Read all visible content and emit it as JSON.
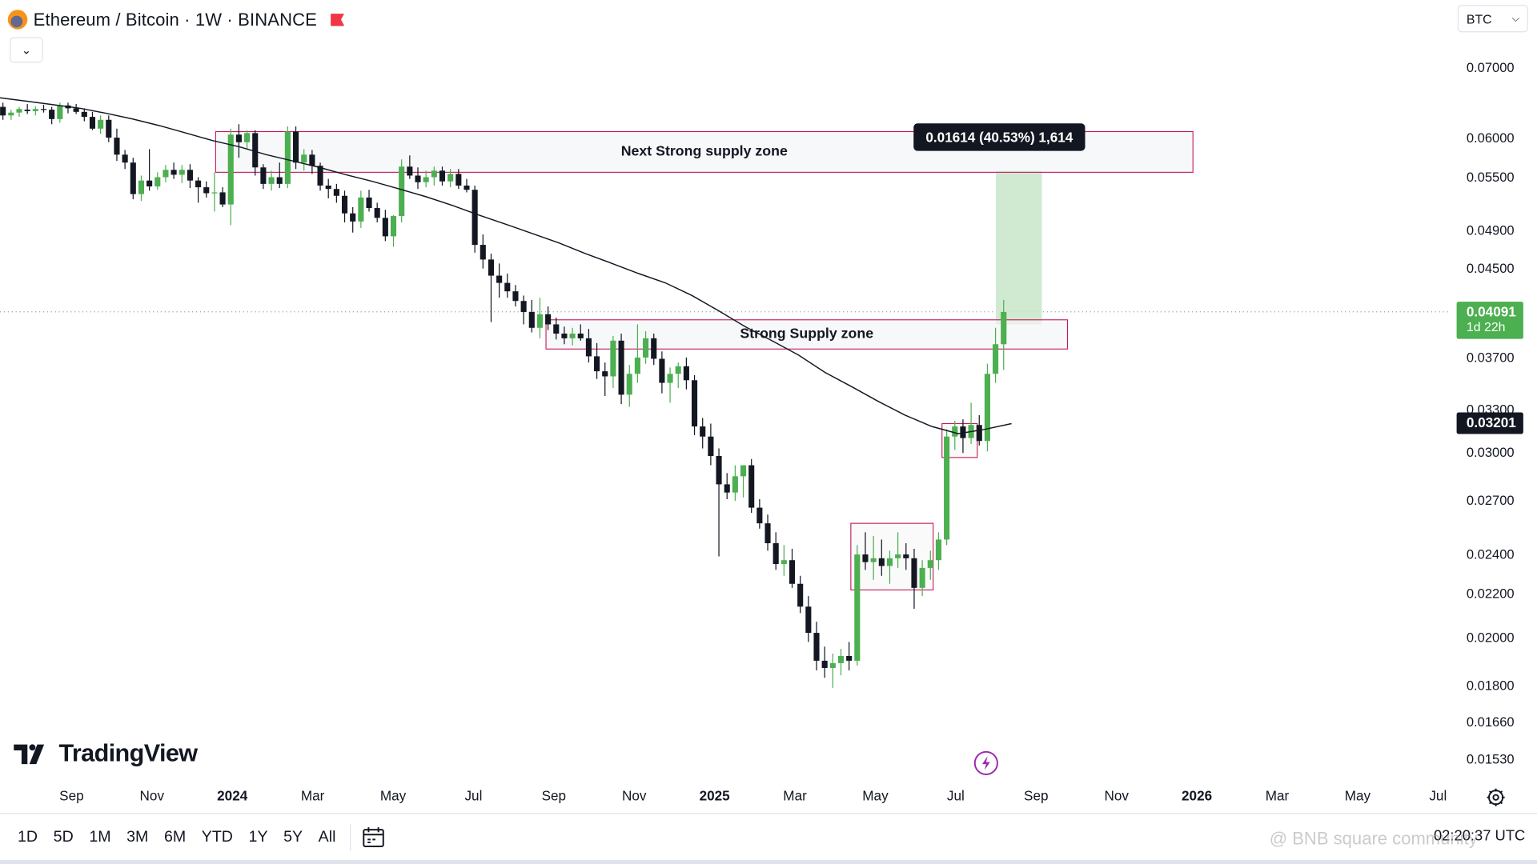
{
  "header": {
    "title": "Ethereum / Bitcoin · 1W · BINANCE",
    "currency": "BTC"
  },
  "annotations": {
    "next_zone_label": "Next Strong supply zone",
    "strong_zone_label": "Strong Supply zone",
    "measure_label": "0.01614 (40.53%) 1,614"
  },
  "price_labels": {
    "current_price": "0.04091",
    "countdown": "1d 22h",
    "ma_price": "0.03201",
    "colors": {
      "current": "#4caf50",
      "ma": "#131722"
    }
  },
  "price_axis_ticks": [
    "0.07000",
    "0.06000",
    "0.05500",
    "0.04900",
    "0.04500",
    "0.03700",
    "0.03300",
    "0.03000",
    "0.02700",
    "0.02400",
    "0.02200",
    "0.02000",
    "0.01800",
    "0.01660",
    "0.01530"
  ],
  "time_axis_ticks": [
    {
      "label": "Sep",
      "bold": false
    },
    {
      "label": "Nov",
      "bold": false
    },
    {
      "label": "2024",
      "bold": true
    },
    {
      "label": "Mar",
      "bold": false
    },
    {
      "label": "May",
      "bold": false
    },
    {
      "label": "Jul",
      "bold": false
    },
    {
      "label": "Sep",
      "bold": false
    },
    {
      "label": "Nov",
      "bold": false
    },
    {
      "label": "2025",
      "bold": true
    },
    {
      "label": "Mar",
      "bold": false
    },
    {
      "label": "May",
      "bold": false
    },
    {
      "label": "Jul",
      "bold": false
    },
    {
      "label": "Sep",
      "bold": false
    },
    {
      "label": "Nov",
      "bold": false
    },
    {
      "label": "2026",
      "bold": true
    },
    {
      "label": "Mar",
      "bold": false
    },
    {
      "label": "May",
      "bold": false
    },
    {
      "label": "Jul",
      "bold": false
    }
  ],
  "bottom_bar": {
    "ranges": [
      "1D",
      "5D",
      "1M",
      "3M",
      "6M",
      "YTD",
      "1Y",
      "5Y",
      "All"
    ],
    "time": "02:20:37 UTC"
  },
  "brand": "TradingView",
  "watermark": "@ BNB square community",
  "icons": {
    "symbol": "eth-logo-icon",
    "flag": "flag-icon",
    "collapse": "chevron-down-icon",
    "settings": "gear-icon",
    "calendar": "calendar-icon",
    "bolt": "lightning-icon"
  },
  "colors": {
    "up": "#4caf50",
    "down": "#131722",
    "ma": "#131722",
    "zone_border": "#c2185b",
    "measure_fill": "#c8e6c9"
  },
  "chart_data": {
    "type": "candlestick",
    "timeframe": "1W",
    "y_scale": "log",
    "ylim": [
      0.0145,
      0.0745
    ],
    "candles": [
      [
        0.0642,
        0.0648,
        0.0624,
        0.063
      ],
      [
        0.063,
        0.0638,
        0.0624,
        0.0634
      ],
      [
        0.0634,
        0.0642,
        0.0628,
        0.0639
      ],
      [
        0.0638,
        0.0646,
        0.0632,
        0.0636
      ],
      [
        0.0636,
        0.0643,
        0.063,
        0.0639
      ],
      [
        0.0639,
        0.0645,
        0.0634,
        0.0638
      ],
      [
        0.0638,
        0.0642,
        0.0618,
        0.0625
      ],
      [
        0.0625,
        0.0648,
        0.062,
        0.0644
      ],
      [
        0.0644,
        0.0648,
        0.0633,
        0.064
      ],
      [
        0.064,
        0.0646,
        0.0632,
        0.0635
      ],
      [
        0.0635,
        0.064,
        0.0622,
        0.0628
      ],
      [
        0.0628,
        0.0635,
        0.061,
        0.0612
      ],
      [
        0.0612,
        0.063,
        0.0605,
        0.0624
      ],
      [
        0.0624,
        0.063,
        0.0594,
        0.06
      ],
      [
        0.06,
        0.0612,
        0.057,
        0.0578
      ],
      [
        0.0578,
        0.0584,
        0.056,
        0.0568
      ],
      [
        0.0568,
        0.0574,
        0.0524,
        0.053
      ],
      [
        0.053,
        0.0552,
        0.0522,
        0.0546
      ],
      [
        0.0546,
        0.0585,
        0.0534,
        0.0539
      ],
      [
        0.0539,
        0.0556,
        0.0535,
        0.055
      ],
      [
        0.055,
        0.0565,
        0.0544,
        0.0559
      ],
      [
        0.0559,
        0.0568,
        0.0548,
        0.0553
      ],
      [
        0.0553,
        0.0565,
        0.0543,
        0.0559
      ],
      [
        0.0559,
        0.0566,
        0.0537,
        0.0546
      ],
      [
        0.0546,
        0.055,
        0.052,
        0.0538
      ],
      [
        0.0538,
        0.0545,
        0.0526,
        0.0531
      ],
      [
        0.0531,
        0.0556,
        0.051,
        0.0532
      ],
      [
        0.0532,
        0.0538,
        0.0515,
        0.0518
      ],
      [
        0.0518,
        0.0612,
        0.0495,
        0.0604
      ],
      [
        0.0604,
        0.0618,
        0.0574,
        0.0594
      ],
      [
        0.0594,
        0.061,
        0.0585,
        0.0606
      ],
      [
        0.0606,
        0.061,
        0.0552,
        0.0562
      ],
      [
        0.0562,
        0.0566,
        0.0536,
        0.0542
      ],
      [
        0.0542,
        0.0558,
        0.0534,
        0.055
      ],
      [
        0.055,
        0.0568,
        0.0537,
        0.0542
      ],
      [
        0.0542,
        0.0615,
        0.0537,
        0.0608
      ],
      [
        0.0608,
        0.0615,
        0.056,
        0.0568
      ],
      [
        0.0568,
        0.0585,
        0.0558,
        0.0578
      ],
      [
        0.0578,
        0.0584,
        0.0554,
        0.0564
      ],
      [
        0.0564,
        0.0568,
        0.0534,
        0.054
      ],
      [
        0.054,
        0.0548,
        0.0525,
        0.0536
      ],
      [
        0.0536,
        0.0542,
        0.052,
        0.0528
      ],
      [
        0.0528,
        0.0534,
        0.0498,
        0.0508
      ],
      [
        0.0508,
        0.0515,
        0.0487,
        0.0499
      ],
      [
        0.0499,
        0.0534,
        0.0492,
        0.0526
      ],
      [
        0.0526,
        0.0535,
        0.051,
        0.0514
      ],
      [
        0.0514,
        0.052,
        0.0498,
        0.0503
      ],
      [
        0.0503,
        0.0512,
        0.0478,
        0.0483
      ],
      [
        0.0483,
        0.0506,
        0.0472,
        0.0505
      ],
      [
        0.0505,
        0.0572,
        0.0498,
        0.0563
      ],
      [
        0.0563,
        0.0577,
        0.0548,
        0.0552
      ],
      [
        0.0552,
        0.0562,
        0.0536,
        0.0544
      ],
      [
        0.0544,
        0.0558,
        0.0538,
        0.055
      ],
      [
        0.055,
        0.0563,
        0.054,
        0.0558
      ],
      [
        0.0558,
        0.0563,
        0.054,
        0.0545
      ],
      [
        0.0545,
        0.056,
        0.0538,
        0.0554
      ],
      [
        0.0554,
        0.056,
        0.0536,
        0.054
      ],
      [
        0.054,
        0.0548,
        0.0532,
        0.0535
      ],
      [
        0.0535,
        0.054,
        0.0466,
        0.0474
      ],
      [
        0.0474,
        0.0485,
        0.045,
        0.0459
      ],
      [
        0.0459,
        0.0465,
        0.04,
        0.0443
      ],
      [
        0.0443,
        0.0455,
        0.0422,
        0.0436
      ],
      [
        0.0436,
        0.0445,
        0.0422,
        0.0428
      ],
      [
        0.0428,
        0.0434,
        0.0414,
        0.0419
      ],
      [
        0.0419,
        0.0424,
        0.0398,
        0.0409
      ],
      [
        0.0409,
        0.042,
        0.0391,
        0.0395
      ],
      [
        0.0395,
        0.0422,
        0.0386,
        0.0407
      ],
      [
        0.0407,
        0.0414,
        0.0393,
        0.0398
      ],
      [
        0.0398,
        0.0404,
        0.0385,
        0.039
      ],
      [
        0.039,
        0.0396,
        0.0381,
        0.0386
      ],
      [
        0.0386,
        0.0395,
        0.038,
        0.039
      ],
      [
        0.039,
        0.0398,
        0.0384,
        0.0386
      ],
      [
        0.0386,
        0.0394,
        0.0366,
        0.0371
      ],
      [
        0.0371,
        0.0382,
        0.0353,
        0.0359
      ],
      [
        0.0359,
        0.0366,
        0.034,
        0.0355
      ],
      [
        0.0355,
        0.0388,
        0.0346,
        0.0384
      ],
      [
        0.0384,
        0.039,
        0.0334,
        0.0341
      ],
      [
        0.0341,
        0.0364,
        0.0332,
        0.0357
      ],
      [
        0.0357,
        0.0398,
        0.035,
        0.037
      ],
      [
        0.037,
        0.0392,
        0.0365,
        0.0386
      ],
      [
        0.0386,
        0.039,
        0.0364,
        0.0369
      ],
      [
        0.0369,
        0.0375,
        0.0342,
        0.035
      ],
      [
        0.035,
        0.0362,
        0.0335,
        0.0357
      ],
      [
        0.0357,
        0.0366,
        0.0346,
        0.0363
      ],
      [
        0.0363,
        0.037,
        0.0345,
        0.0352
      ],
      [
        0.0352,
        0.0356,
        0.0312,
        0.0318
      ],
      [
        0.0318,
        0.0324,
        0.0303,
        0.0311
      ],
      [
        0.0311,
        0.032,
        0.0292,
        0.0298
      ],
      [
        0.0298,
        0.0303,
        0.0239,
        0.028
      ],
      [
        0.028,
        0.0287,
        0.0271,
        0.0275
      ],
      [
        0.0275,
        0.0292,
        0.027,
        0.0285
      ],
      [
        0.0285,
        0.029,
        0.0272,
        0.0292
      ],
      [
        0.0292,
        0.0296,
        0.0263,
        0.0266
      ],
      [
        0.0266,
        0.0271,
        0.0254,
        0.0257
      ],
      [
        0.0257,
        0.0262,
        0.0242,
        0.0246
      ],
      [
        0.0246,
        0.0252,
        0.0232,
        0.0235
      ],
      [
        0.0235,
        0.0245,
        0.0229,
        0.0237
      ],
      [
        0.0237,
        0.0243,
        0.0223,
        0.0225
      ],
      [
        0.0225,
        0.0229,
        0.0211,
        0.0214
      ],
      [
        0.0214,
        0.0219,
        0.0198,
        0.0202
      ],
      [
        0.0202,
        0.0207,
        0.0186,
        0.019
      ],
      [
        0.019,
        0.0196,
        0.0183,
        0.0187
      ],
      [
        0.0187,
        0.0193,
        0.0179,
        0.0189
      ],
      [
        0.0189,
        0.0195,
        0.0184,
        0.0192
      ],
      [
        0.0192,
        0.0198,
        0.0186,
        0.019
      ],
      [
        0.019,
        0.0245,
        0.0188,
        0.024
      ],
      [
        0.024,
        0.0252,
        0.0232,
        0.0236
      ],
      [
        0.0236,
        0.025,
        0.0227,
        0.0238
      ],
      [
        0.0238,
        0.0248,
        0.0229,
        0.0234
      ],
      [
        0.0234,
        0.0242,
        0.0225,
        0.0238
      ],
      [
        0.0238,
        0.0252,
        0.0233,
        0.024
      ],
      [
        0.024,
        0.0246,
        0.0232,
        0.0238
      ],
      [
        0.0238,
        0.0243,
        0.0213,
        0.0223
      ],
      [
        0.0223,
        0.0237,
        0.0219,
        0.0233
      ],
      [
        0.0233,
        0.0242,
        0.0227,
        0.0237
      ],
      [
        0.0237,
        0.0252,
        0.0232,
        0.0248
      ],
      [
        0.0248,
        0.0316,
        0.0245,
        0.0311
      ],
      [
        0.0311,
        0.0322,
        0.0302,
        0.0318
      ],
      [
        0.0318,
        0.0323,
        0.03,
        0.031
      ],
      [
        0.031,
        0.0335,
        0.0306,
        0.0319
      ],
      [
        0.0319,
        0.0326,
        0.0305,
        0.0308
      ],
      [
        0.0308,
        0.0365,
        0.0301,
        0.0357
      ],
      [
        0.0357,
        0.0395,
        0.035,
        0.0381
      ],
      [
        0.0381,
        0.042,
        0.036,
        0.0409
      ]
    ],
    "moving_average": [
      0.0655,
      0.065,
      0.0645,
      0.064,
      0.0633,
      0.0625,
      0.0616,
      0.0606,
      0.0596,
      0.0588,
      0.0578,
      0.057,
      0.0562,
      0.0553,
      0.0545,
      0.0536,
      0.0527,
      0.0517,
      0.0506,
      0.0496,
      0.0486,
      0.0476,
      0.0465,
      0.0455,
      0.0445,
      0.0436,
      0.0424,
      0.041,
      0.0396,
      0.0384,
      0.0372,
      0.0358,
      0.0347,
      0.0336,
      0.0326,
      0.0318,
      0.0313,
      0.0316,
      0.032
    ],
    "supply_zones": [
      {
        "label": "Next Strong supply zone",
        "low": 0.0556,
        "high": 0.0608
      },
      {
        "label": "Strong Supply zone",
        "low": 0.0377,
        "high": 0.0402
      }
    ],
    "consolidation_boxes": [
      {
        "low": 0.0222,
        "high": 0.0257
      },
      {
        "low": 0.0297,
        "high": 0.032
      }
    ],
    "measure": {
      "from": 0.0398,
      "to": 0.0558,
      "label": "0.01614 (40.53%) 1,614"
    },
    "current_price": 0.04091,
    "ma_value": 0.03201
  }
}
